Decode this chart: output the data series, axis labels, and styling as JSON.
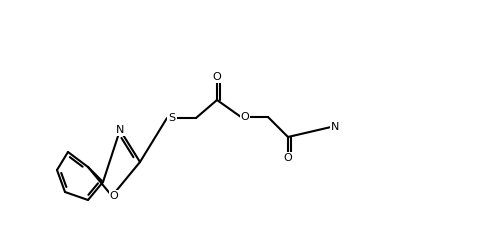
{
  "bg_color": "#ffffff",
  "line_color": "#000000",
  "line_width": 1.5,
  "font_size": 8,
  "atoms": {
    "N_label": "N",
    "S_label": "S",
    "O_label": "O",
    "N2_label": "N",
    "S2_label": "S",
    "O2_label": "O"
  },
  "figsize": [
    4.79,
    2.31
  ],
  "dpi": 100
}
